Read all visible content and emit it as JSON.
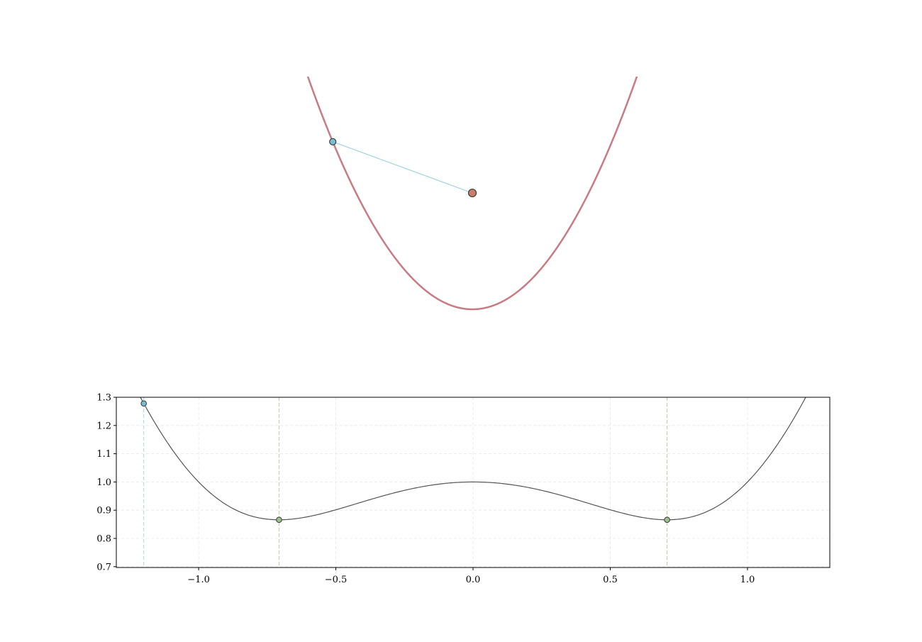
{
  "chart_data": [
    {
      "type": "line",
      "description_of_content": "parabola y = x^2 with fixed point and current point on curve",
      "curve": {
        "function": "y = x^2",
        "x_range": [
          -1.42,
          1.42
        ],
        "color": "#c97b84"
      },
      "fixed_point": {
        "x": 0.0,
        "y": 1.0,
        "color": "#c8806a"
      },
      "current_point": {
        "x": -1.2,
        "y": 1.44,
        "color": "#7bbcd5"
      },
      "segment_color": "#a8d5e2",
      "ylim_top": 2.0,
      "axis_visible": false,
      "aspect": "equal"
    },
    {
      "type": "line",
      "curve": {
        "function": "d(x) = sqrt(x^2 + (x^2 - 1)^2)",
        "color": "#555555"
      },
      "xlim": [
        -1.3,
        1.3
      ],
      "ylim": [
        0.697,
        1.3
      ],
      "x_ticks": [
        "−1.0",
        "−0.5",
        "0.0",
        "0.5",
        "1.0"
      ],
      "x_tick_values": [
        -1.0,
        -0.5,
        0.0,
        0.5,
        1.0
      ],
      "y_ticks": [
        "0.7",
        "0.8",
        "0.9",
        "1.0",
        "1.1",
        "1.2",
        "1.3"
      ],
      "y_tick_values": [
        0.7,
        0.8,
        0.9,
        1.0,
        1.1,
        1.2,
        1.3
      ],
      "grid": true,
      "current_marker": {
        "x": -1.2,
        "y": 1.278,
        "color": "#7bbcd5"
      },
      "minima": [
        {
          "x": -0.707,
          "y": 0.866
        },
        {
          "x": 0.707,
          "y": 0.866
        }
      ],
      "minima_color": "#9dbf8e",
      "current_vline_color": "#a8d5e2",
      "minima_vline_color": "#b5cfa0"
    }
  ]
}
